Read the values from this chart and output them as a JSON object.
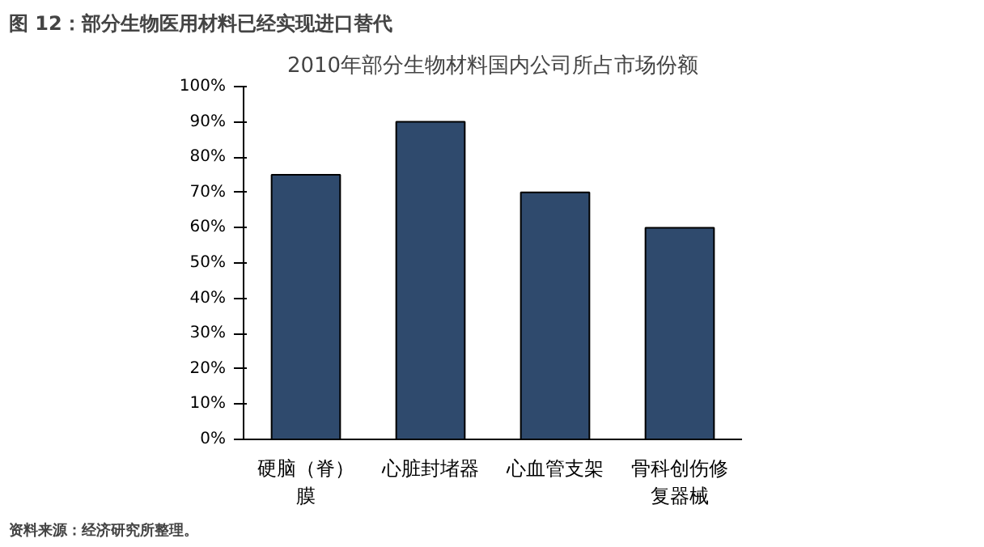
{
  "chart_data": {
    "type": "bar",
    "title": "图 12：部分生物医用材料已经实现进口替代",
    "subtitle": "2010年部分生物材料国内公司所占市场份额",
    "categories": [
      "硬脑（脊）膜",
      "心脏封堵器",
      "心血管支架",
      "骨科创伤修复器械"
    ],
    "values": [
      75,
      90,
      70,
      60
    ],
    "color": "#2f4a6d",
    "ylim": [
      0,
      100
    ],
    "yticks": [
      {
        "value": 0,
        "label": "0%"
      },
      {
        "value": 10,
        "label": "10%"
      },
      {
        "value": 20,
        "label": "20%"
      },
      {
        "value": 30,
        "label": "30%"
      },
      {
        "value": 40,
        "label": "40%"
      },
      {
        "value": 50,
        "label": "50%"
      },
      {
        "value": 60,
        "label": "60%"
      },
      {
        "value": 70,
        "label": "70%"
      },
      {
        "value": 80,
        "label": "80%"
      },
      {
        "value": 90,
        "label": "90%"
      },
      {
        "value": 100,
        "label": "100%"
      }
    ],
    "grid": false,
    "annotations": [
      "资料来源：经济研究所整理。"
    ]
  }
}
